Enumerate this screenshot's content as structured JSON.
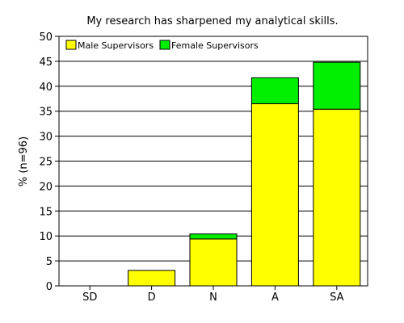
{
  "chart_data": {
    "type": "bar",
    "stacked": true,
    "title": "My research has sharpened my analytical skills.",
    "xlabel": "",
    "ylabel": "% (n=96)",
    "categories": [
      "SD",
      "D",
      "N",
      "A",
      "SA"
    ],
    "ylim": [
      0,
      50
    ],
    "yticks": [
      0,
      5,
      10,
      15,
      20,
      25,
      30,
      35,
      40,
      45,
      50
    ],
    "grid": true,
    "legend_position": "top-left",
    "series": [
      {
        "name": "Male Supervisors",
        "color": "#ffff00",
        "values": [
          0,
          3.1,
          9.4,
          36.5,
          35.4
        ]
      },
      {
        "name": "Female Supervisors",
        "color": "#00ee00",
        "values": [
          0,
          0,
          1.0,
          5.2,
          9.4
        ]
      }
    ]
  }
}
